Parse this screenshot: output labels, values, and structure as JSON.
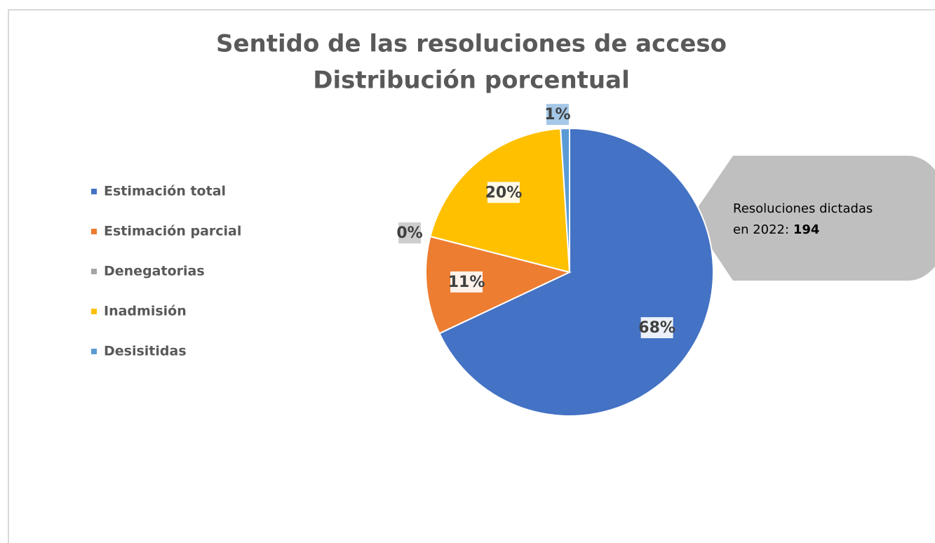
{
  "chart_data": {
    "type": "pie",
    "title": [
      "Sentido de las resoluciones de acceso",
      "Distribución porcentual"
    ],
    "categories": [
      "Estimación total",
      "Estimación parcial",
      "Denegatorias",
      "Inadmisión",
      "Desisitidas"
    ],
    "values": [
      68,
      11,
      0,
      20,
      1
    ],
    "value_labels": [
      "68%",
      "11%",
      "0%",
      "20%",
      "1%"
    ],
    "colors": [
      "#4472c4",
      "#ed7d31",
      "#a5a5a5",
      "#ffc000",
      "#5b9bd5"
    ],
    "legend": "left",
    "annotation": {
      "text": [
        "Resoluciones dictadas",
        "en 2022:"
      ],
      "value": 194
    }
  }
}
